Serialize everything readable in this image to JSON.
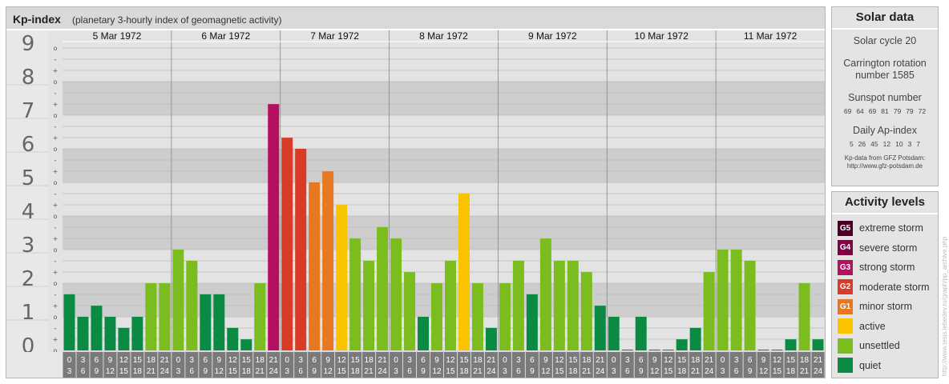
{
  "header": {
    "title": "Kp-index",
    "subtitle": "(planetary 3-hourly index of geomagnetic activity)"
  },
  "chart_data": {
    "type": "bar",
    "title": "Kp-index",
    "subtitle": "(planetary 3-hourly index of geomagnetic activity)",
    "ylim": [
      0,
      9
    ],
    "y_ticks": [
      "0",
      "1",
      "2",
      "3",
      "4",
      "5",
      "6",
      "7",
      "8",
      "9"
    ],
    "minor_tick_glyphs": [
      "o",
      "+",
      "-"
    ],
    "days": [
      "5 Mar 1972",
      "6 Mar 1972",
      "7 Mar 1972",
      "8 Mar 1972",
      "9 Mar 1972",
      "10 Mar 1972",
      "11 Mar 1972"
    ],
    "interval_starts": [
      "0",
      "3",
      "6",
      "9",
      "12",
      "15",
      "18",
      "21"
    ],
    "interval_ends": [
      "3",
      "6",
      "9",
      "12",
      "15",
      "18",
      "21",
      "24"
    ],
    "series": [
      {
        "values": [
          [
            1.67,
            1.0,
            1.33,
            1.0,
            0.67,
            1.0,
            2.0,
            2.0
          ],
          [
            3.0,
            2.67,
            1.67,
            1.67,
            0.67,
            0.33,
            2.0,
            7.33
          ],
          [
            6.33,
            6.0,
            5.0,
            5.33,
            4.33,
            3.33,
            2.67,
            3.67
          ],
          [
            3.33,
            2.33,
            1.0,
            2.0,
            2.67,
            4.67,
            2.0,
            0.67
          ],
          [
            2.0,
            2.67,
            1.67,
            3.33,
            2.67,
            2.67,
            2.33,
            1.33
          ],
          [
            1.0,
            0.0,
            1.0,
            0.0,
            0.0,
            0.33,
            0.67,
            2.33
          ],
          [
            3.0,
            3.0,
            2.67,
            0.0,
            0.0,
            0.33,
            2.0,
            0.33
          ]
        ]
      }
    ],
    "grid": true,
    "legend_position": "right"
  },
  "solar_data": {
    "title": "Solar data",
    "solar_cycle": "Solar cycle 20",
    "carrington_line1": "Carrington rotation",
    "carrington_line2": "number 1585",
    "sunspot_title": "Sunspot number",
    "sunspot_values": [
      "69",
      "64",
      "69",
      "81",
      "79",
      "79",
      "72"
    ],
    "ap_title": "Daily Ap-index",
    "ap_values": [
      "5",
      "26",
      "45",
      "12",
      "10",
      "3",
      "7"
    ],
    "credit_line1": "Kp-data from GFZ Potsdam:",
    "credit_line2": "http://www.gfz-potsdam.de"
  },
  "activity_levels": {
    "title": "Activity levels",
    "items": [
      {
        "code": "G5",
        "label": "extreme storm",
        "color": "#4a0025"
      },
      {
        "code": "G4",
        "label": "severe storm",
        "color": "#7d0545"
      },
      {
        "code": "G3",
        "label": "strong storm",
        "color": "#b4105f"
      },
      {
        "code": "G2",
        "label": "moderate storm",
        "color": "#d93b26"
      },
      {
        "code": "G1",
        "label": "minor storm",
        "color": "#e87722"
      },
      {
        "code": "",
        "label": "active",
        "color": "#f9c300"
      },
      {
        "code": "",
        "label": "unsettled",
        "color": "#7bbd1f"
      },
      {
        "code": "",
        "label": "quiet",
        "color": "#0b8a44"
      }
    ]
  },
  "watermark": "http://www.tesis.lebedev.ru/graph/pp_archive.php"
}
